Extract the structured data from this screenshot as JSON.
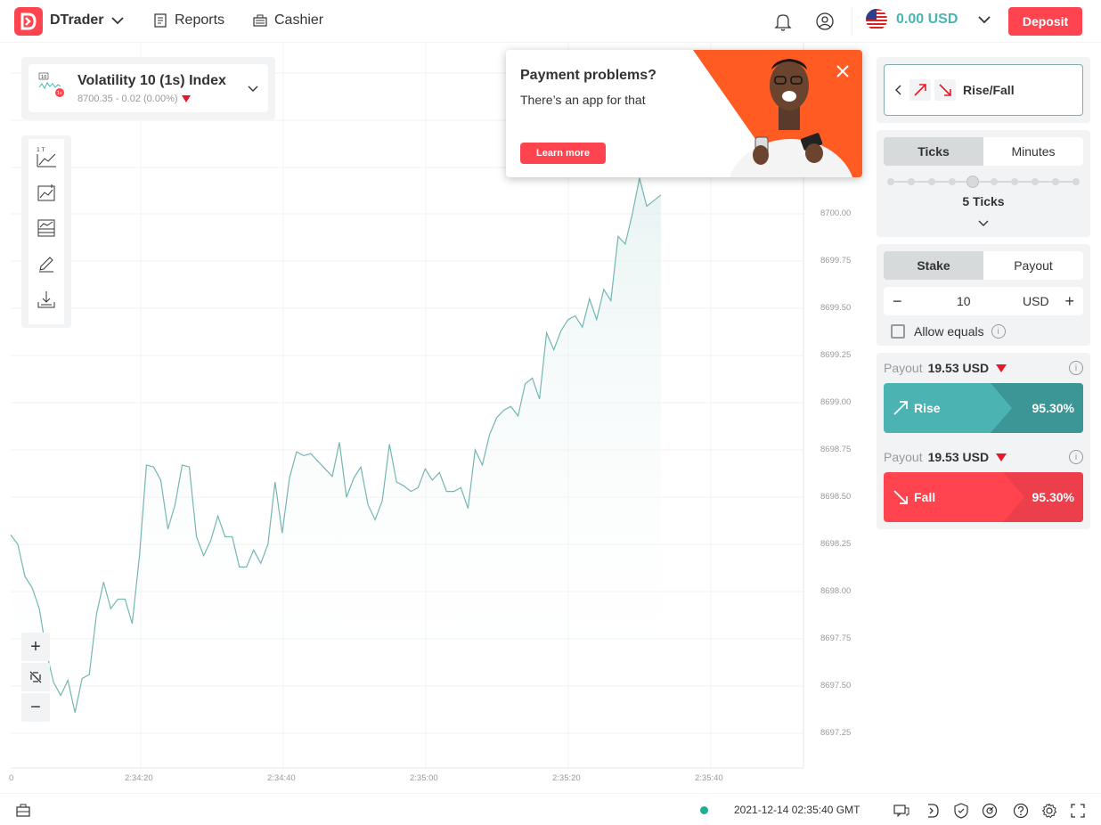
{
  "header": {
    "brand": "DTrader",
    "nav": [
      {
        "label": "Reports",
        "icon": "reports-icon"
      },
      {
        "label": "Cashier",
        "icon": "cashier-icon"
      }
    ],
    "balance": "0.00 USD",
    "deposit_label": "Deposit"
  },
  "symbol": {
    "name": "Volatility 10 (1s) Index",
    "price_info": "8700.35 - 0.02 (0.00%)"
  },
  "chart_data": {
    "type": "line",
    "xlabel": "",
    "ylabel": "",
    "x_tick_labels": [
      "0",
      "2:34:20",
      "2:34:40",
      "2:35:00",
      "2:35:20",
      "2:35:40"
    ],
    "y_tick_labels": [
      "8700.00",
      "8699.75",
      "8699.50",
      "8699.25",
      "8699.00",
      "8698.75",
      "8698.50",
      "8698.25",
      "8698.00",
      "8697.75",
      "8697.50",
      "8697.25"
    ],
    "ylim": [
      8697.2,
      8700.3
    ],
    "series": [
      {
        "values": [
          8698.3,
          8698.25,
          8698.08,
          8698.02,
          8697.91,
          8697.68,
          8697.52,
          8697.45,
          8697.53,
          8697.36,
          8697.54,
          8697.56,
          8697.88,
          8698.05,
          8697.91,
          8697.96,
          8697.96,
          8697.83,
          8698.18,
          8698.67,
          8698.66,
          8698.59,
          8698.33,
          8698.46,
          8698.67,
          8698.66,
          8698.29,
          8698.19,
          8698.27,
          8698.4,
          8698.29,
          8698.29,
          8698.13,
          8698.13,
          8698.22,
          8698.15,
          8698.25,
          8698.58,
          8698.31,
          8698.6,
          8698.74,
          8698.72,
          8698.73,
          8698.69,
          8698.65,
          8698.61,
          8698.79,
          8698.5,
          8698.6,
          8698.66,
          8698.46,
          8698.38,
          8698.48,
          8698.78,
          8698.58,
          8698.56,
          8698.53,
          8698.55,
          8698.65,
          8698.59,
          8698.63,
          8698.53,
          8698.53,
          8698.55,
          8698.44,
          8698.75,
          8698.67,
          8698.83,
          8698.92,
          8698.96,
          8698.98,
          8698.93,
          8699.1,
          8699.13,
          8699.02,
          8699.37,
          8699.28,
          8699.38,
          8699.44,
          8699.46,
          8699.4,
          8699.55,
          8699.44,
          8699.6,
          8699.54,
          8699.88,
          8699.84,
          8700.0,
          8700.19,
          8700.04,
          8700.07,
          8700.1
        ]
      }
    ]
  },
  "banner": {
    "title": "Payment problems?",
    "text": "There’s an app for that",
    "button": "Learn more"
  },
  "trade": {
    "contract_type": "Rise/Fall",
    "duration_tabs": [
      "Ticks",
      "Minutes"
    ],
    "duration_value": "5 Ticks",
    "duration_ticks": 5,
    "amount_tabs": [
      "Stake",
      "Payout"
    ],
    "stake": "10",
    "currency": "USD",
    "allow_equals": "Allow equals",
    "payout_label": "Payout",
    "rise": {
      "payout": "19.53 USD",
      "label": "Rise",
      "percent": "95.30%"
    },
    "fall": {
      "payout": "19.53 USD",
      "label": "Fall",
      "percent": "95.30%"
    }
  },
  "footer": {
    "time": "2021-12-14 02:35:40 GMT"
  },
  "colors": {
    "brand": "#ff444f",
    "rise": "#4bb4b3",
    "fall": "#ff444f",
    "line": "#74b6b1"
  }
}
